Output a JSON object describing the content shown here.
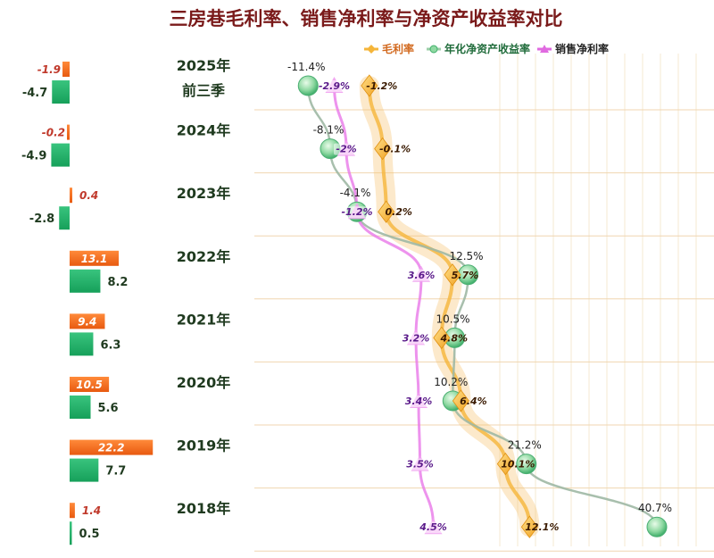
{
  "chart_data": {
    "type": "combo-bar-line",
    "title": "三房巷毛利率、销售净利率与净资产收益率对比",
    "legend": [
      "毛利率",
      "年化净资产收益率",
      "销售净利率"
    ],
    "legend_position": "top-right",
    "periods": [
      {
        "label": [
          "2025年",
          "前三季"
        ],
        "bar_orange": -1.9,
        "bar_green": -4.7,
        "gross_margin": -1.2,
        "roe": -11.4,
        "net_margin": -2.9
      },
      {
        "label": [
          "2024年"
        ],
        "bar_orange": -0.2,
        "bar_green": -4.9,
        "gross_margin": -0.1,
        "roe": -8.1,
        "net_margin": -2.0
      },
      {
        "label": [
          "2023年"
        ],
        "bar_orange": 0.4,
        "bar_green": -2.8,
        "gross_margin": 0.2,
        "roe": -4.1,
        "net_margin": -1.2
      },
      {
        "label": [
          "2022年"
        ],
        "bar_orange": 13.1,
        "bar_green": 8.2,
        "gross_margin": 5.7,
        "roe": 12.5,
        "net_margin": 3.6
      },
      {
        "label": [
          "2021年"
        ],
        "bar_orange": 9.4,
        "bar_green": 6.3,
        "gross_margin": 4.8,
        "roe": 10.5,
        "net_margin": 3.2
      },
      {
        "label": [
          "2020年"
        ],
        "bar_orange": 10.5,
        "bar_green": 5.6,
        "gross_margin": 6.4,
        "roe": 10.2,
        "net_margin": 3.4
      },
      {
        "label": [
          "2019年"
        ],
        "bar_orange": 22.2,
        "bar_green": 7.7,
        "gross_margin": 10.1,
        "roe": 21.2,
        "net_margin": 3.5
      },
      {
        "label": [
          "2018年"
        ],
        "bar_orange": 1.4,
        "bar_green": 0.5,
        "gross_margin": 12.1,
        "roe": 40.7,
        "net_margin": 4.5
      }
    ],
    "colors": {
      "bar_orange": "#f26a1b",
      "bar_green": "#20b36a",
      "gross_margin": "#f5b53a",
      "roe": "#7fd39a",
      "net_margin": "#e06ae0"
    }
  }
}
